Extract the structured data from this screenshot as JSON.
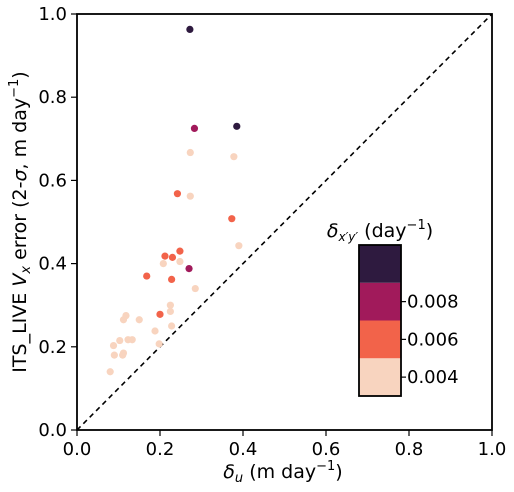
{
  "chart_data": {
    "type": "scatter",
    "xlim": [
      0.0,
      1.0
    ],
    "ylim": [
      0.0,
      1.0
    ],
    "xticks": [
      "0.0",
      "0.2",
      "0.4",
      "0.6",
      "0.8",
      "1.0"
    ],
    "yticks": [
      "0.0",
      "0.2",
      "0.4",
      "0.6",
      "0.8",
      "1.0"
    ],
    "xlabel": "δu (m day⁻¹)",
    "ylabel": "ITS_LIVE Vx error (2-σ, m day⁻¹)",
    "grid": false,
    "reference_line": {
      "type": "1:1",
      "style": "dashed",
      "color": "#000000"
    },
    "colorbar": {
      "title": "δx′y′ (day⁻¹)",
      "bins": [
        {
          "range": [
            0.003,
            0.005
          ],
          "color": "#f8d4bf"
        },
        {
          "range": [
            0.005,
            0.007
          ],
          "color": "#f2634a"
        },
        {
          "range": [
            0.007,
            0.009
          ],
          "color": "#a11a5b"
        },
        {
          "range": [
            0.009,
            0.011
          ],
          "color": "#2e1a3f"
        }
      ],
      "ticks": [
        "0.004",
        "0.006",
        "0.008"
      ]
    },
    "points": [
      {
        "x": 0.272,
        "y": 0.963,
        "c": 0.01
      },
      {
        "x": 0.385,
        "y": 0.73,
        "c": 0.01
      },
      {
        "x": 0.283,
        "y": 0.725,
        "c": 0.008
      },
      {
        "x": 0.27,
        "y": 0.388,
        "c": 0.008
      },
      {
        "x": 0.242,
        "y": 0.568,
        "c": 0.006
      },
      {
        "x": 0.373,
        "y": 0.508,
        "c": 0.006
      },
      {
        "x": 0.248,
        "y": 0.43,
        "c": 0.006
      },
      {
        "x": 0.212,
        "y": 0.418,
        "c": 0.006
      },
      {
        "x": 0.23,
        "y": 0.415,
        "c": 0.006
      },
      {
        "x": 0.168,
        "y": 0.37,
        "c": 0.006
      },
      {
        "x": 0.228,
        "y": 0.362,
        "c": 0.006
      },
      {
        "x": 0.2,
        "y": 0.278,
        "c": 0.006
      },
      {
        "x": 0.273,
        "y": 0.667,
        "c": 0.004
      },
      {
        "x": 0.378,
        "y": 0.657,
        "c": 0.004
      },
      {
        "x": 0.273,
        "y": 0.562,
        "c": 0.004
      },
      {
        "x": 0.39,
        "y": 0.443,
        "c": 0.004
      },
      {
        "x": 0.248,
        "y": 0.405,
        "c": 0.004
      },
      {
        "x": 0.208,
        "y": 0.4,
        "c": 0.004
      },
      {
        "x": 0.285,
        "y": 0.34,
        "c": 0.004
      },
      {
        "x": 0.225,
        "y": 0.3,
        "c": 0.004
      },
      {
        "x": 0.225,
        "y": 0.285,
        "c": 0.004
      },
      {
        "x": 0.118,
        "y": 0.275,
        "c": 0.004
      },
      {
        "x": 0.112,
        "y": 0.265,
        "c": 0.004
      },
      {
        "x": 0.15,
        "y": 0.265,
        "c": 0.004
      },
      {
        "x": 0.228,
        "y": 0.25,
        "c": 0.004
      },
      {
        "x": 0.188,
        "y": 0.238,
        "c": 0.004
      },
      {
        "x": 0.103,
        "y": 0.215,
        "c": 0.004
      },
      {
        "x": 0.123,
        "y": 0.217,
        "c": 0.004
      },
      {
        "x": 0.133,
        "y": 0.217,
        "c": 0.004
      },
      {
        "x": 0.088,
        "y": 0.203,
        "c": 0.004
      },
      {
        "x": 0.198,
        "y": 0.207,
        "c": 0.004
      },
      {
        "x": 0.112,
        "y": 0.185,
        "c": 0.004
      },
      {
        "x": 0.11,
        "y": 0.18,
        "c": 0.004
      },
      {
        "x": 0.09,
        "y": 0.18,
        "c": 0.004
      },
      {
        "x": 0.08,
        "y": 0.14,
        "c": 0.004
      }
    ]
  }
}
